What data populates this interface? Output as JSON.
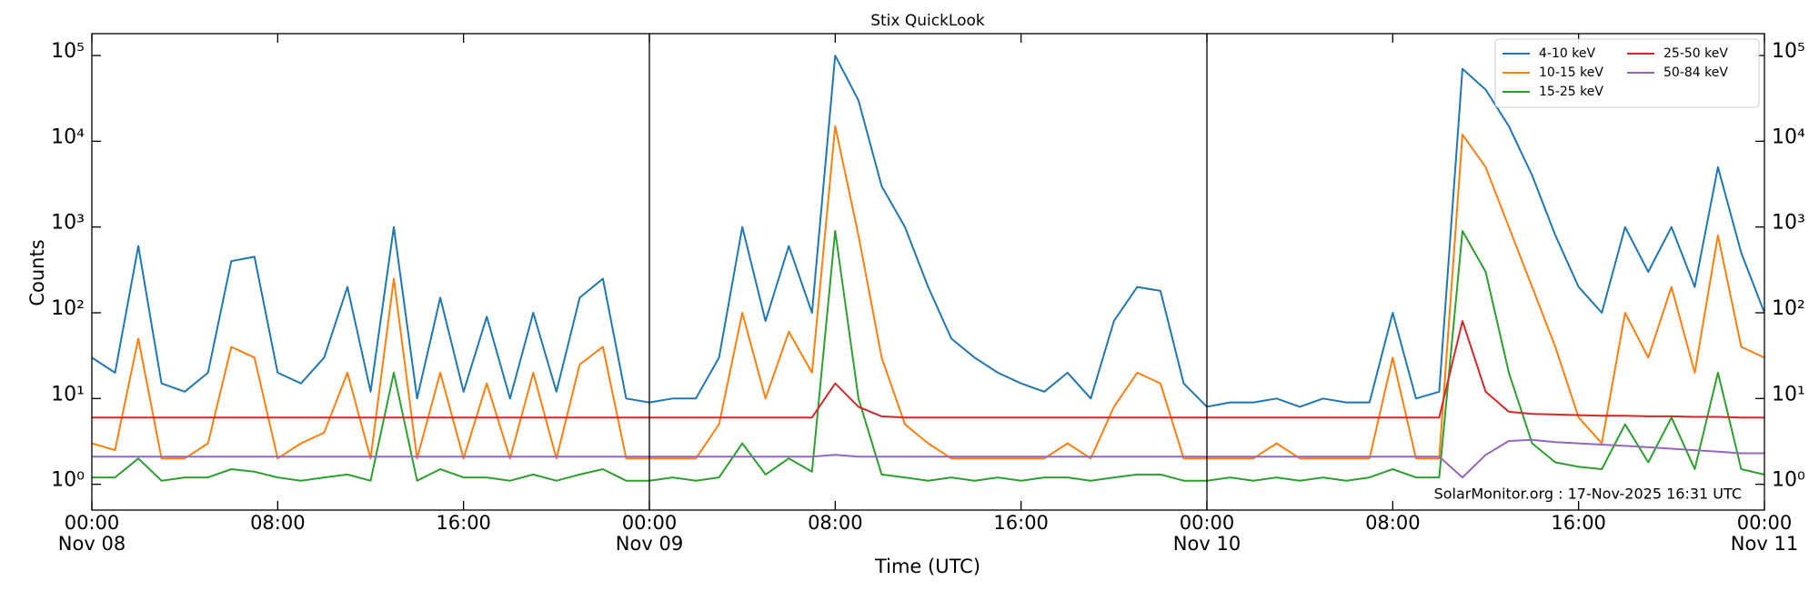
{
  "chart_data": {
    "type": "line",
    "title": "Stix QuickLook",
    "xlabel": "Time (UTC)",
    "ylabel": "Counts",
    "annotation": "SolarMonitor.org : 17-Nov-2025 16:31 UTC",
    "yscale": "log",
    "legend": "upper right",
    "legend_columns": 2,
    "xlim": [
      0,
      72
    ],
    "ylim": [
      0.5,
      180000
    ],
    "xticks": [
      {
        "value": 0,
        "label": "00:00"
      },
      {
        "value": 8,
        "label": "08:00"
      },
      {
        "value": 16,
        "label": "16:00"
      },
      {
        "value": 24,
        "label": "00:00"
      },
      {
        "value": 32,
        "label": "08:00"
      },
      {
        "value": 40,
        "label": "16:00"
      },
      {
        "value": 48,
        "label": "00:00"
      },
      {
        "value": 56,
        "label": "08:00"
      },
      {
        "value": 64,
        "label": "16:00"
      },
      {
        "value": 72,
        "label": "00:00"
      }
    ],
    "xtick_dates": [
      {
        "value": 0,
        "label": "Nov 08"
      },
      {
        "value": 24,
        "label": "Nov 09"
      },
      {
        "value": 48,
        "label": "Nov 10"
      },
      {
        "value": 72,
        "label": "Nov 11"
      }
    ],
    "vlines": [
      24,
      48
    ],
    "yticks": [
      {
        "value": 1,
        "label": "10⁰"
      },
      {
        "value": 10,
        "label": "10¹"
      },
      {
        "value": 100,
        "label": "10²"
      },
      {
        "value": 1000,
        "label": "10³"
      },
      {
        "value": 10000,
        "label": "10⁴"
      },
      {
        "value": 100000,
        "label": "10⁵"
      }
    ],
    "x": [
      0,
      1,
      2,
      3,
      4,
      5,
      6,
      7,
      8,
      9,
      10,
      11,
      12,
      13,
      14,
      15,
      16,
      17,
      18,
      19,
      20,
      21,
      22,
      23,
      24,
      25,
      26,
      27,
      28,
      29,
      30,
      31,
      32,
      33,
      34,
      35,
      36,
      37,
      38,
      39,
      40,
      41,
      42,
      43,
      44,
      45,
      46,
      47,
      48,
      49,
      50,
      51,
      52,
      53,
      54,
      55,
      56,
      57,
      58,
      59,
      60,
      61,
      62,
      63,
      64,
      65,
      66,
      67,
      68,
      69,
      70,
      71,
      72
    ],
    "series": [
      {
        "name": "4-10 keV",
        "color": "#1f77b4",
        "values": [
          30,
          20,
          600,
          15,
          12,
          20,
          400,
          450,
          20,
          15,
          30,
          200,
          12,
          1000,
          10,
          150,
          12,
          90,
          10,
          100,
          12,
          150,
          250,
          10,
          9,
          10,
          10,
          30,
          1000,
          80,
          600,
          100,
          100000,
          30000,
          3000,
          1000,
          200,
          50,
          30,
          20,
          15,
          12,
          20,
          10,
          80,
          200,
          180,
          15,
          8,
          9,
          9,
          10,
          8,
          10,
          9,
          9,
          100,
          10,
          12,
          70000,
          40000,
          15000,
          4000,
          800,
          200,
          100,
          1000,
          300,
          1000,
          200,
          5000,
          500,
          100
        ]
      },
      {
        "name": "10-15 keV",
        "color": "#ff7f0e",
        "values": [
          3,
          2.5,
          50,
          2,
          2,
          3,
          40,
          30,
          2,
          3,
          4,
          20,
          2,
          250,
          2,
          20,
          2,
          15,
          2,
          20,
          2,
          25,
          40,
          2,
          2,
          2,
          2,
          5,
          100,
          10,
          60,
          20,
          15000,
          800,
          30,
          5,
          3,
          2,
          2,
          2,
          2,
          2,
          3,
          2,
          8,
          20,
          15,
          2,
          2,
          2,
          2,
          3,
          2,
          2,
          2,
          2,
          30,
          2,
          2,
          12000,
          5000,
          1000,
          200,
          40,
          6,
          3,
          100,
          30,
          200,
          20,
          800,
          40,
          30
        ]
      },
      {
        "name": "15-25 keV",
        "color": "#2ca02c",
        "values": [
          1.2,
          1.2,
          2,
          1.1,
          1.2,
          1.2,
          1.5,
          1.4,
          1.2,
          1.1,
          1.2,
          1.3,
          1.1,
          20,
          1.1,
          1.5,
          1.2,
          1.2,
          1.1,
          1.3,
          1.1,
          1.3,
          1.5,
          1.1,
          1.1,
          1.2,
          1.1,
          1.2,
          3,
          1.3,
          2,
          1.4,
          900,
          10,
          1.3,
          1.2,
          1.1,
          1.2,
          1.1,
          1.2,
          1.1,
          1.2,
          1.2,
          1.1,
          1.2,
          1.3,
          1.3,
          1.1,
          1.1,
          1.2,
          1.1,
          1.2,
          1.1,
          1.2,
          1.1,
          1.2,
          1.5,
          1.2,
          1.2,
          900,
          300,
          20,
          3,
          1.8,
          1.6,
          1.5,
          5,
          1.8,
          6,
          1.5,
          20,
          1.5,
          1.3
        ]
      },
      {
        "name": "25-50 keV",
        "color": "#d62728",
        "values": [
          6,
          6,
          6,
          6,
          6,
          6,
          6,
          6,
          6,
          6,
          6,
          6,
          6,
          6,
          6,
          6,
          6,
          6,
          6,
          6,
          6,
          6,
          6,
          6,
          6,
          6,
          6,
          6,
          6,
          6,
          6,
          6,
          15,
          8,
          6.2,
          6,
          6,
          6,
          6,
          6,
          6,
          6,
          6,
          6,
          6,
          6,
          6,
          6,
          6,
          6,
          6,
          6,
          6,
          6,
          6,
          6,
          6,
          6,
          6,
          80,
          12,
          7,
          6.6,
          6.5,
          6.4,
          6.3,
          6.3,
          6.2,
          6.2,
          6.1,
          6.1,
          6,
          6
        ]
      },
      {
        "name": "50-84 keV",
        "color": "#9467bd",
        "values": [
          2.1,
          2.1,
          2.1,
          2.1,
          2.1,
          2.1,
          2.1,
          2.1,
          2.1,
          2.1,
          2.1,
          2.1,
          2.1,
          2.1,
          2.1,
          2.1,
          2.1,
          2.1,
          2.1,
          2.1,
          2.1,
          2.1,
          2.1,
          2.1,
          2.1,
          2.1,
          2.1,
          2.1,
          2.1,
          2.1,
          2.1,
          2.1,
          2.2,
          2.1,
          2.1,
          2.1,
          2.1,
          2.1,
          2.1,
          2.1,
          2.1,
          2.1,
          2.1,
          2.1,
          2.1,
          2.1,
          2.1,
          2.1,
          2.1,
          2.1,
          2.1,
          2.1,
          2.1,
          2.1,
          2.1,
          2.1,
          2.1,
          2.1,
          2.1,
          1.2,
          2.2,
          3.2,
          3.3,
          3.1,
          3.0,
          2.9,
          2.8,
          2.7,
          2.6,
          2.5,
          2.4,
          2.3,
          2.3
        ]
      }
    ]
  }
}
